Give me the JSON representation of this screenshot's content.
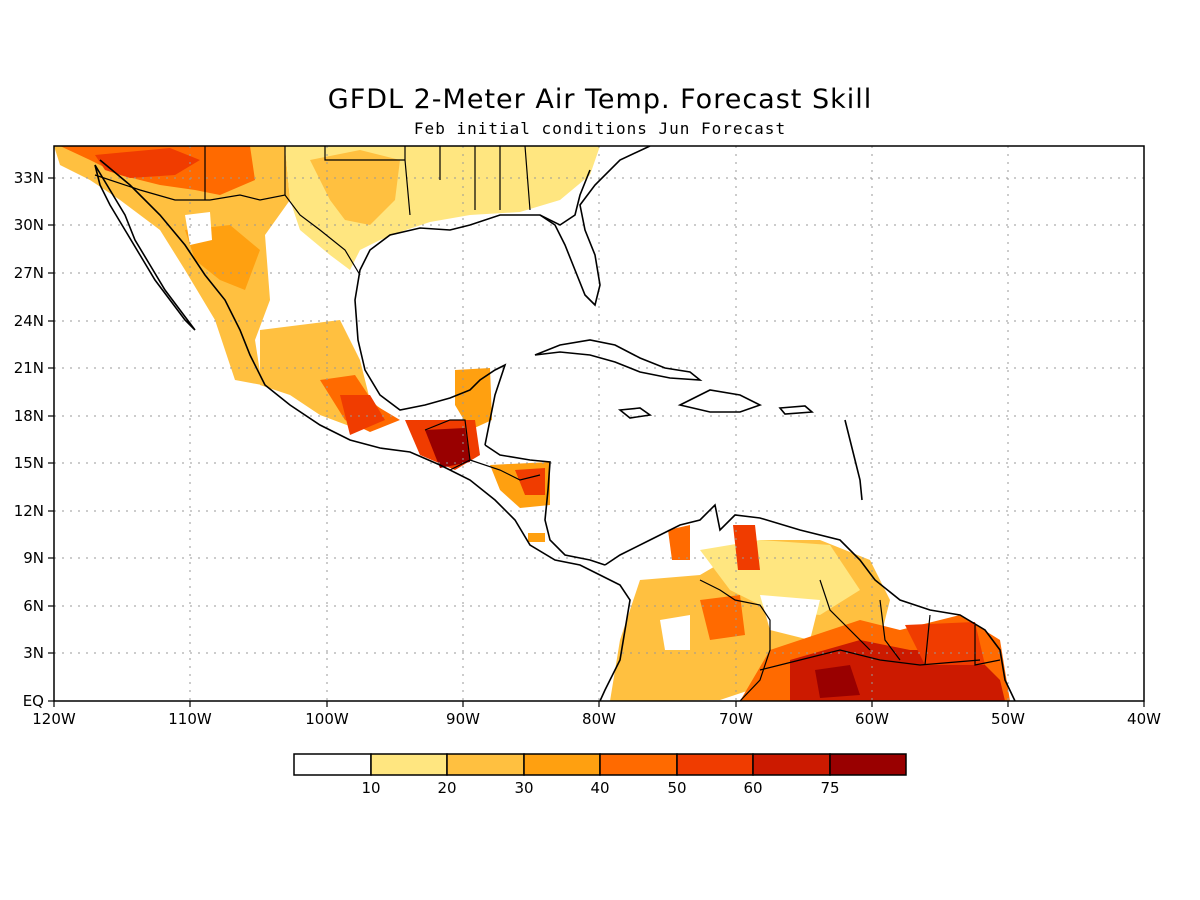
{
  "title": "GFDL 2-Meter Air Temp. Forecast Skill",
  "subtitle": "Feb initial conditions  Jun Forecast",
  "axes": {
    "x_ticks": [
      "120W",
      "110W",
      "100W",
      "90W",
      "80W",
      "70W",
      "60W",
      "50W",
      "40W"
    ],
    "y_ticks": [
      "EQ",
      "3N",
      "6N",
      "9N",
      "12N",
      "15N",
      "18N",
      "21N",
      "24N",
      "27N",
      "30N",
      "33N"
    ]
  },
  "legend": {
    "labels": [
      "10",
      "20",
      "30",
      "40",
      "50",
      "60",
      "75"
    ],
    "colors": [
      "#ffffff",
      "#ffe680",
      "#ffc040",
      "#ffa010",
      "#ff6a00",
      "#f03c00",
      "#cc1a00",
      "#990000"
    ]
  },
  "map_data": {
    "type": "filled-contour-map",
    "lon_range": [
      -120,
      -40
    ],
    "lat_range": [
      0,
      35
    ],
    "grid": true,
    "regions": [
      {
        "name": "northern-mexico-southwest-us",
        "level": 3
      },
      {
        "name": "southern-us-gulf-states",
        "level": 2
      },
      {
        "name": "southern-mexico",
        "level": 3
      },
      {
        "name": "yucatan-belize",
        "level": 5
      },
      {
        "name": "guatemala",
        "level": 7
      },
      {
        "name": "honduras-nicaragua",
        "level": 4
      },
      {
        "name": "colombia",
        "level": 3
      },
      {
        "name": "venezuela",
        "level": 2
      },
      {
        "name": "northern-brazil-guianas",
        "level": 6
      },
      {
        "name": "french-guiana-suriname",
        "level": 6
      }
    ]
  }
}
